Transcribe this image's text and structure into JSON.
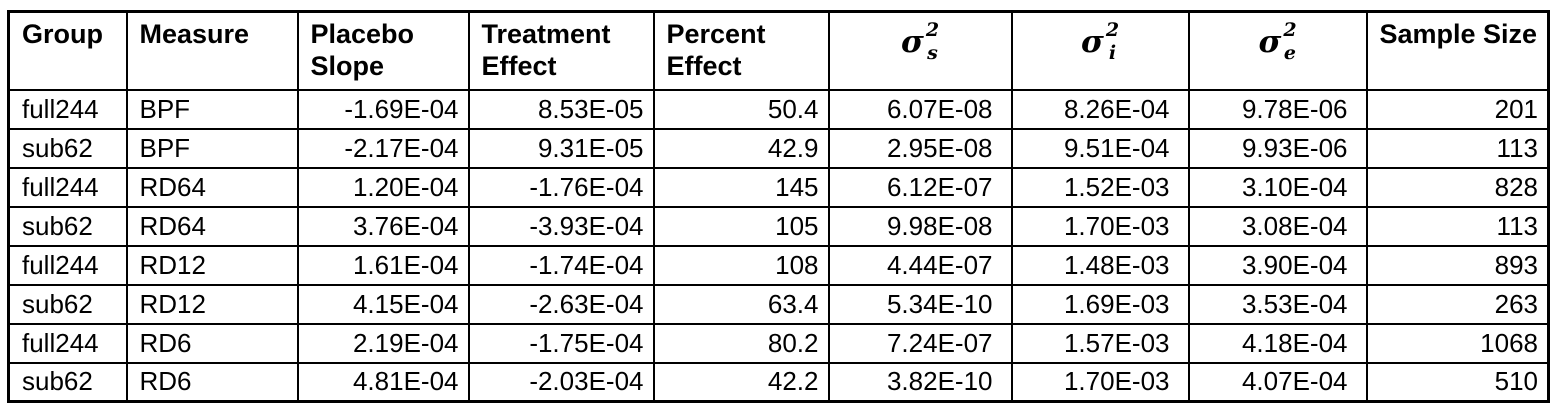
{
  "colors": {
    "border": "#000000",
    "background": "#ffffff",
    "text": "#000000"
  },
  "chart_data": {
    "type": "table",
    "columns": [
      {
        "key": "group",
        "label": "Group",
        "align": "left"
      },
      {
        "key": "measure",
        "label": "Measure",
        "align": "left"
      },
      {
        "key": "placebo-slope",
        "label": "Placebo Slope",
        "align": "right"
      },
      {
        "key": "treatment-effect",
        "label": "Treatment Effect",
        "align": "right"
      },
      {
        "key": "percent-effect",
        "label": "Percent Effect",
        "align": "right"
      },
      {
        "key": "sigma-s",
        "label": "sigma_s^2",
        "math": {
          "base": "σ",
          "sup": "2",
          "sub": "s"
        },
        "align": "sigma"
      },
      {
        "key": "sigma-i",
        "label": "sigma_i^2",
        "math": {
          "base": "σ",
          "sup": "2",
          "sub": "i"
        },
        "align": "sigma"
      },
      {
        "key": "sigma-e",
        "label": "sigma_e^2",
        "math": {
          "base": "σ",
          "sup": "2",
          "sub": "e"
        },
        "align": "sigma"
      },
      {
        "key": "sample-size",
        "label": "Sample Size",
        "align": "right"
      }
    ],
    "rows": [
      [
        "full244",
        "BPF",
        "-1.69E-04",
        "8.53E-05",
        "50.4",
        "6.07E-08",
        "8.26E-04",
        "9.78E-06",
        "201"
      ],
      [
        "sub62",
        "BPF",
        "-2.17E-04",
        "9.31E-05",
        "42.9",
        "2.95E-08",
        "9.51E-04",
        "9.93E-06",
        "113"
      ],
      [
        "full244",
        "RD64",
        "1.20E-04",
        "-1.76E-04",
        "145",
        "6.12E-07",
        "1.52E-03",
        "3.10E-04",
        "828"
      ],
      [
        "sub62",
        "RD64",
        "3.76E-04",
        "-3.93E-04",
        "105",
        "9.98E-08",
        "1.70E-03",
        "3.08E-04",
        "113"
      ],
      [
        "full244",
        "RD12",
        "1.61E-04",
        "-1.74E-04",
        "108",
        "4.44E-07",
        "1.48E-03",
        "3.90E-04",
        "893"
      ],
      [
        "sub62",
        "RD12",
        "4.15E-04",
        "-2.63E-04",
        "63.4",
        "5.34E-10",
        "1.69E-03",
        "3.53E-04",
        "263"
      ],
      [
        "full244",
        "RD6",
        "2.19E-04",
        "-1.75E-04",
        "80.2",
        "7.24E-07",
        "1.57E-03",
        "4.18E-04",
        "1068"
      ],
      [
        "sub62",
        "RD6",
        "4.81E-04",
        "-2.03E-04",
        "42.2",
        "3.82E-10",
        "1.70E-03",
        "4.07E-04",
        "510"
      ]
    ]
  }
}
